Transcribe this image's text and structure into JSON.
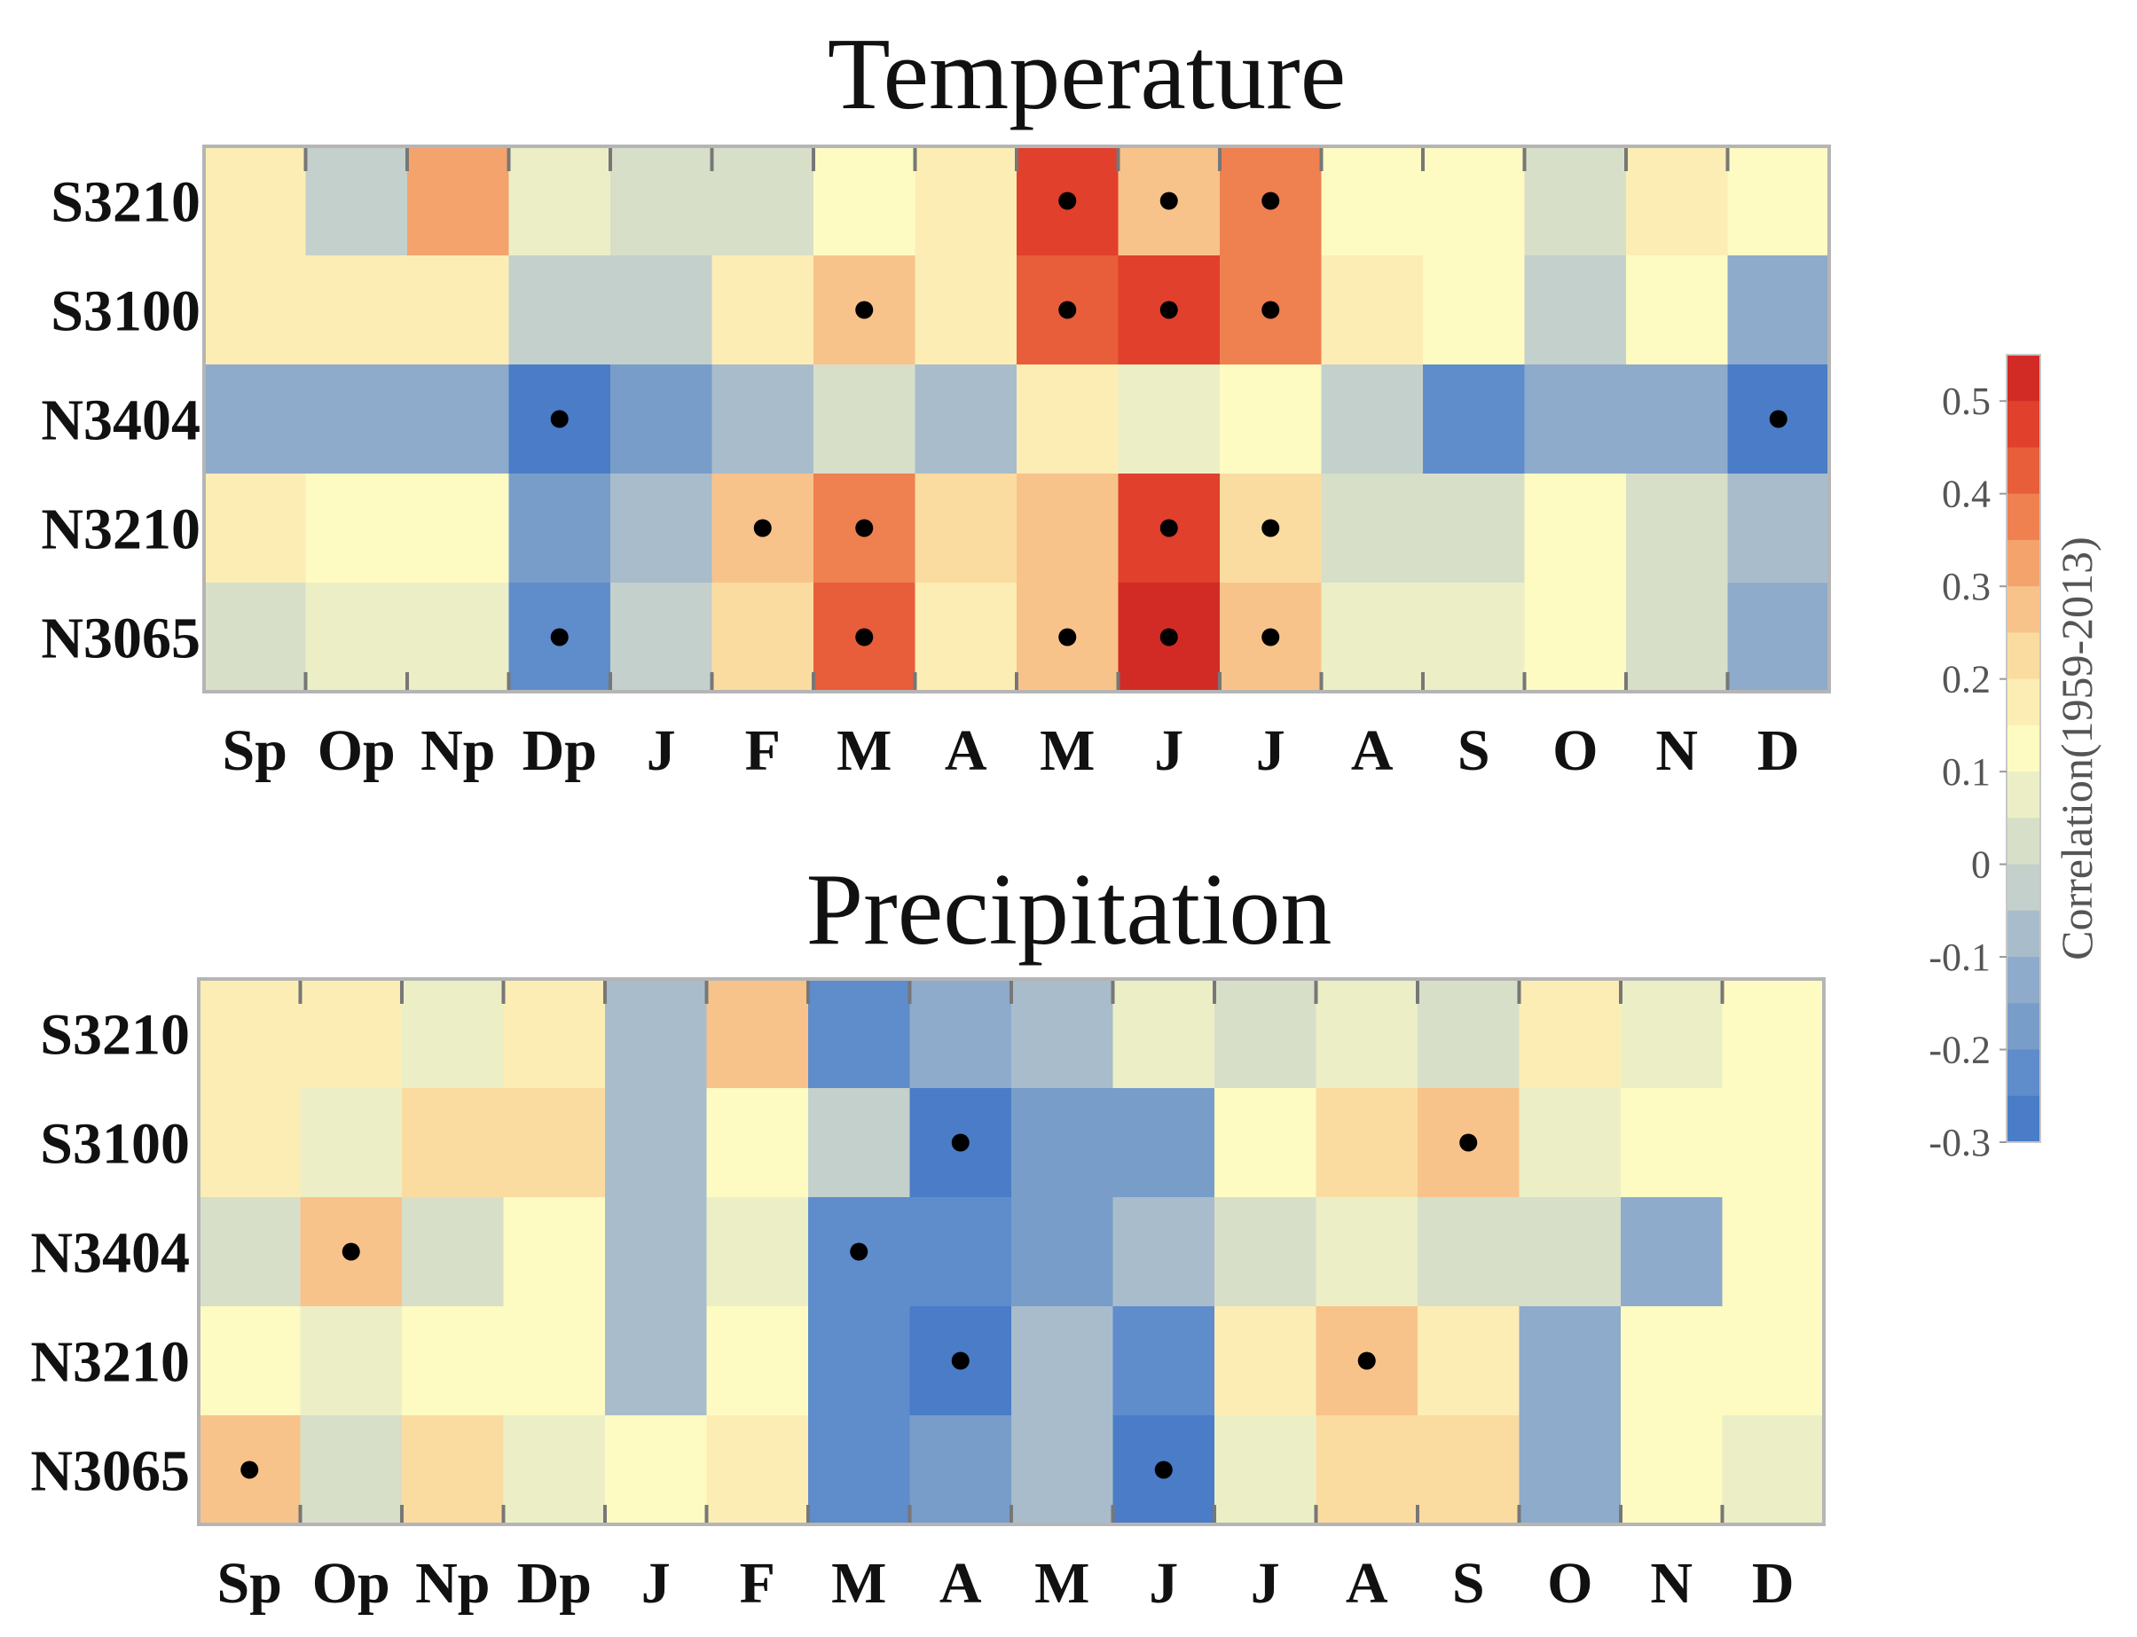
{
  "chart_data": [
    {
      "type": "heatmap",
      "title": "Temperature",
      "rows": [
        "S3210",
        "S3100",
        "N3404",
        "N3210",
        "N3065"
      ],
      "columns": [
        "Sp",
        "Op",
        "Np",
        "Dp",
        "J",
        "F",
        "M",
        "A",
        "M",
        "J",
        "J",
        "A",
        "S",
        "O",
        "N",
        "D"
      ],
      "values": [
        [
          0.18,
          -0.02,
          0.32,
          0.08,
          0.02,
          0.02,
          0.12,
          0.2,
          0.46,
          0.3,
          0.36,
          0.12,
          0.12,
          0.04,
          0.2,
          0.12
        ],
        [
          0.18,
          0.18,
          0.18,
          -0.02,
          -0.02,
          0.18,
          0.28,
          0.18,
          0.44,
          0.48,
          0.4,
          0.18,
          0.12,
          -0.02,
          0.12,
          -0.14
        ],
        [
          -0.14,
          -0.1,
          -0.1,
          -0.3,
          -0.18,
          -0.08,
          0.02,
          -0.08,
          0.18,
          0.08,
          0.14,
          0.0,
          -0.24,
          -0.14,
          -0.14,
          -0.3
        ],
        [
          0.2,
          0.14,
          0.14,
          -0.18,
          -0.08,
          0.28,
          0.36,
          0.24,
          0.26,
          0.48,
          0.24,
          0.02,
          0.04,
          0.14,
          0.04,
          -0.06
        ],
        [
          0.02,
          0.08,
          0.08,
          -0.22,
          -0.02,
          0.24,
          0.44,
          0.16,
          0.28,
          0.54,
          0.3,
          0.08,
          0.08,
          0.14,
          0.04,
          -0.14
        ]
      ],
      "significant": [
        [
          8,
          9,
          10
        ],
        [
          6,
          8,
          9,
          10
        ],
        [
          3,
          15
        ],
        [
          5,
          6,
          9,
          10
        ],
        [
          3,
          6,
          8,
          9,
          10
        ]
      ]
    },
    {
      "type": "heatmap",
      "title": "Precipitation",
      "rows": [
        "S3210",
        "S3100",
        "N3404",
        "N3210",
        "N3065"
      ],
      "columns": [
        "Sp",
        "Op",
        "Np",
        "Dp",
        "J",
        "F",
        "M",
        "A",
        "M",
        "J",
        "J",
        "A",
        "S",
        "O",
        "N",
        "D"
      ],
      "values": [
        [
          0.18,
          0.18,
          0.08,
          0.16,
          -0.08,
          0.26,
          -0.24,
          -0.14,
          -0.06,
          0.08,
          0.04,
          0.08,
          0.02,
          0.2,
          0.08,
          0.14
        ],
        [
          0.16,
          0.08,
          0.24,
          0.24,
          -0.08,
          0.12,
          -0.04,
          -0.28,
          -0.16,
          -0.16,
          0.14,
          0.24,
          0.28,
          0.08,
          0.14,
          0.14
        ],
        [
          0.04,
          0.26,
          0.02,
          0.14,
          -0.08,
          0.08,
          -0.24,
          -0.24,
          -0.2,
          -0.06,
          0.02,
          0.06,
          0.02,
          0.02,
          -0.1,
          0.14
        ],
        [
          0.12,
          0.08,
          0.12,
          0.12,
          -0.08,
          0.12,
          -0.24,
          -0.28,
          -0.06,
          -0.24,
          0.18,
          0.28,
          0.2,
          -0.1,
          0.14,
          0.14
        ],
        [
          0.26,
          0.02,
          0.24,
          0.08,
          0.12,
          0.18,
          -0.24,
          -0.2,
          -0.08,
          -0.3,
          0.08,
          0.24,
          0.24,
          -0.14,
          0.12,
          0.08
        ]
      ],
      "significant": [
        [],
        [
          7,
          12
        ],
        [
          1,
          6
        ],
        [
          7,
          11
        ],
        [
          0,
          9
        ]
      ]
    }
  ],
  "colorbar": {
    "label": "Correlation(1959-2013)",
    "range": [
      -0.3,
      0.55
    ],
    "ticks": [
      0.5,
      0.4,
      0.3,
      0.2,
      0.1,
      0,
      -0.1,
      -0.2,
      -0.3
    ],
    "tick_labels": [
      "0.5",
      "0.4",
      "0.3",
      "0.2",
      "0.1",
      "0",
      "-0.1",
      "-0.2",
      "-0.3"
    ],
    "colors": [
      "#d22b26",
      "#e0402c",
      "#e85d3a",
      "#ef8050",
      "#f4a36d",
      "#f8c38a",
      "#fbdca0",
      "#fcedb4",
      "#fdfbc2",
      "#ecefc6",
      "#d7dfc9",
      "#c4d0cb",
      "#a8bccb",
      "#8eabcb",
      "#789dc9",
      "#5f8ccb",
      "#4a7cc7"
    ]
  },
  "colors": {
    "significance_dot": "#000000",
    "frame": "#b5b5b5",
    "tick": "#777777"
  }
}
